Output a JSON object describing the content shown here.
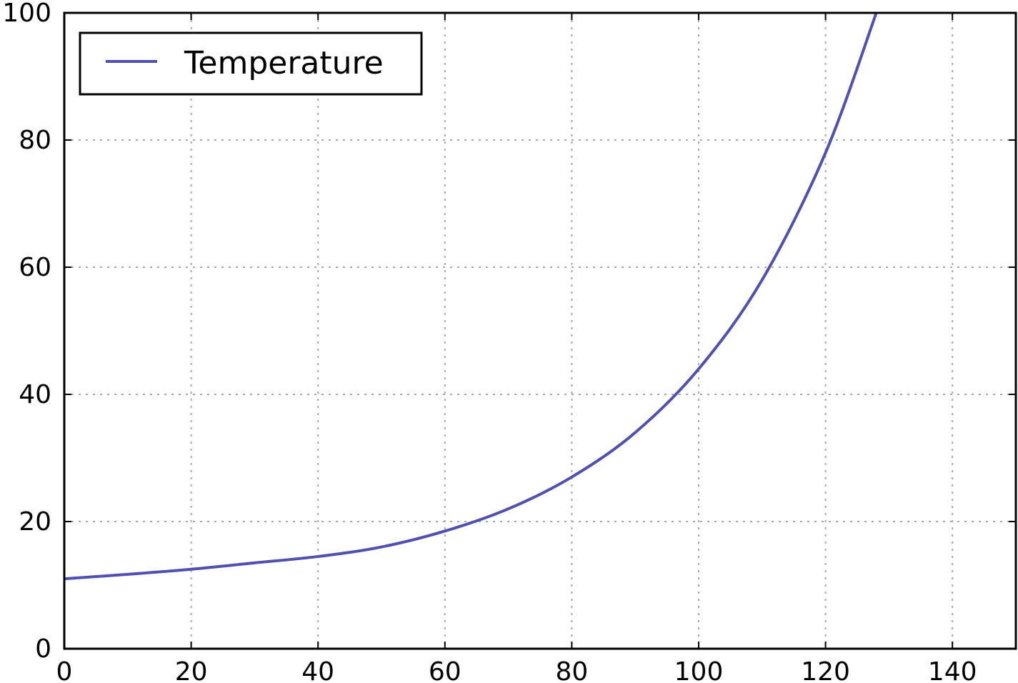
{
  "chart_data": {
    "type": "line",
    "title": "",
    "xlabel": "",
    "ylabel": "",
    "xlim": [
      0,
      150
    ],
    "ylim": [
      0,
      100
    ],
    "xticks": [
      0,
      20,
      40,
      60,
      80,
      100,
      120,
      140
    ],
    "yticks": [
      0,
      20,
      40,
      60,
      80,
      100
    ],
    "xtick_labels": [
      "0",
      "20",
      "40",
      "60",
      "80",
      "100",
      "120",
      "140"
    ],
    "ytick_labels": [
      "0",
      "20",
      "40",
      "60",
      "80",
      "100"
    ],
    "grid": true,
    "legend_position": "top-left",
    "series": [
      {
        "name": "Temperature",
        "color": "#5050b0",
        "x": [
          0,
          10,
          20,
          30,
          40,
          50,
          60,
          70,
          80,
          90,
          100,
          110,
          120,
          128
        ],
        "y": [
          11,
          11.7,
          12.5,
          13.5,
          14.5,
          16,
          18.5,
          22,
          27,
          34,
          44,
          58,
          78,
          100
        ]
      }
    ]
  }
}
